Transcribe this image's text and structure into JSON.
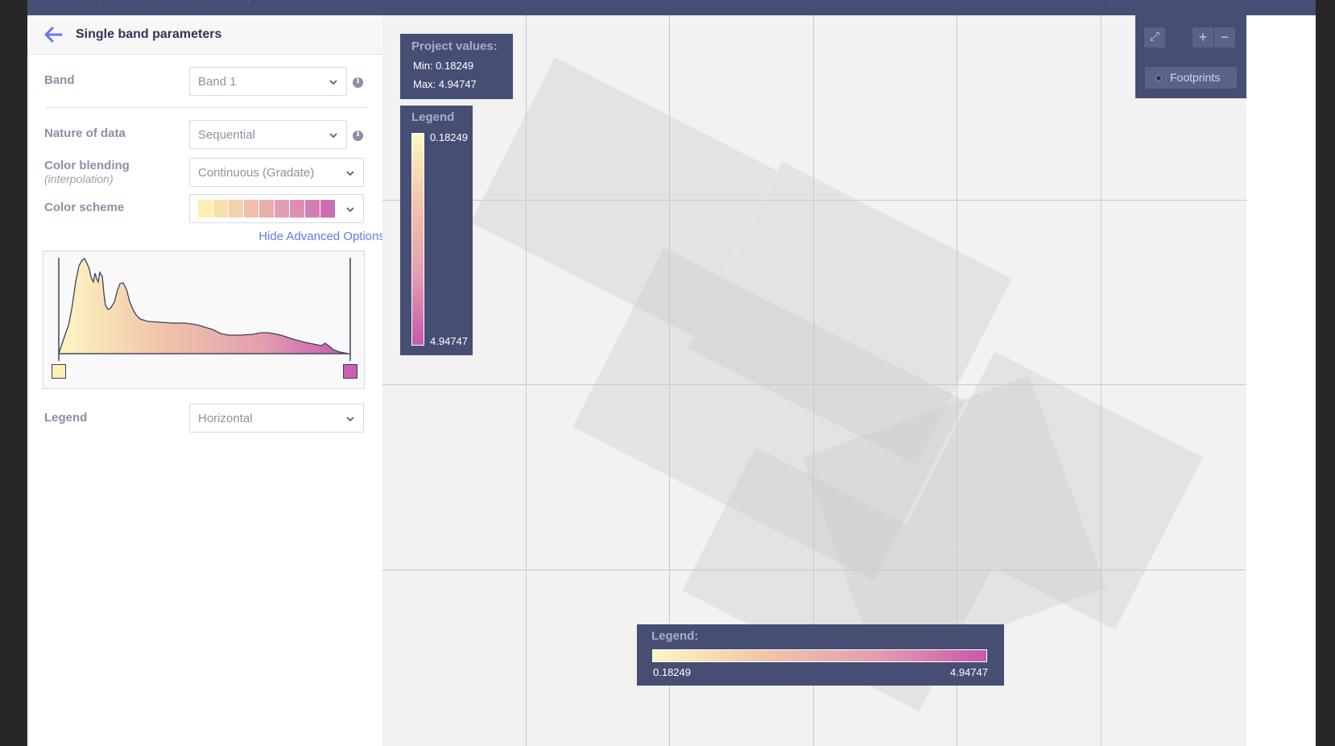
{
  "sidebar": {
    "title": "Single band parameters",
    "band": {
      "label": "Band",
      "value": "Band 1"
    },
    "nature": {
      "label": "Nature of data",
      "value": "Sequential"
    },
    "blending": {
      "label": "Color blending",
      "sublabel": "(interpolation)",
      "value": "Continuous (Gradate)"
    },
    "scheme": {
      "label": "Color scheme",
      "colors": [
        "#fcf0b4",
        "#f8dfb0",
        "#f4d0ad",
        "#efbfac",
        "#e9aeae",
        "#e39fb1",
        "#dc8fb3",
        "#d47fb4",
        "#cc6db2"
      ]
    },
    "advanced_link": "Hide Advanced Options",
    "histogram": {
      "min_color": "#fcf0b4",
      "max_color": "#cc5fb0"
    },
    "legend": {
      "label": "Legend",
      "value": "Horizontal"
    }
  },
  "map": {
    "project_values": {
      "title": "Project values:",
      "min": "Min: 0.18249",
      "max": "Max: 4.94747"
    },
    "legend_vertical": {
      "title": "Legend",
      "top": "0.18249",
      "bottom": "4.94747"
    },
    "controls": {
      "fullscreen": "⤢",
      "zoom_in": "+",
      "zoom_out": "−",
      "footprints": "Footprints"
    },
    "legend_horizontal": {
      "title": "Legend:",
      "min": "0.18249",
      "max": "4.94747"
    }
  },
  "colors": {
    "accent": "#5f7cf2",
    "panel": "#474e74",
    "gradient": [
      "#fdf6c3",
      "#f1c5a8",
      "#e29fb1",
      "#c858ab"
    ]
  }
}
